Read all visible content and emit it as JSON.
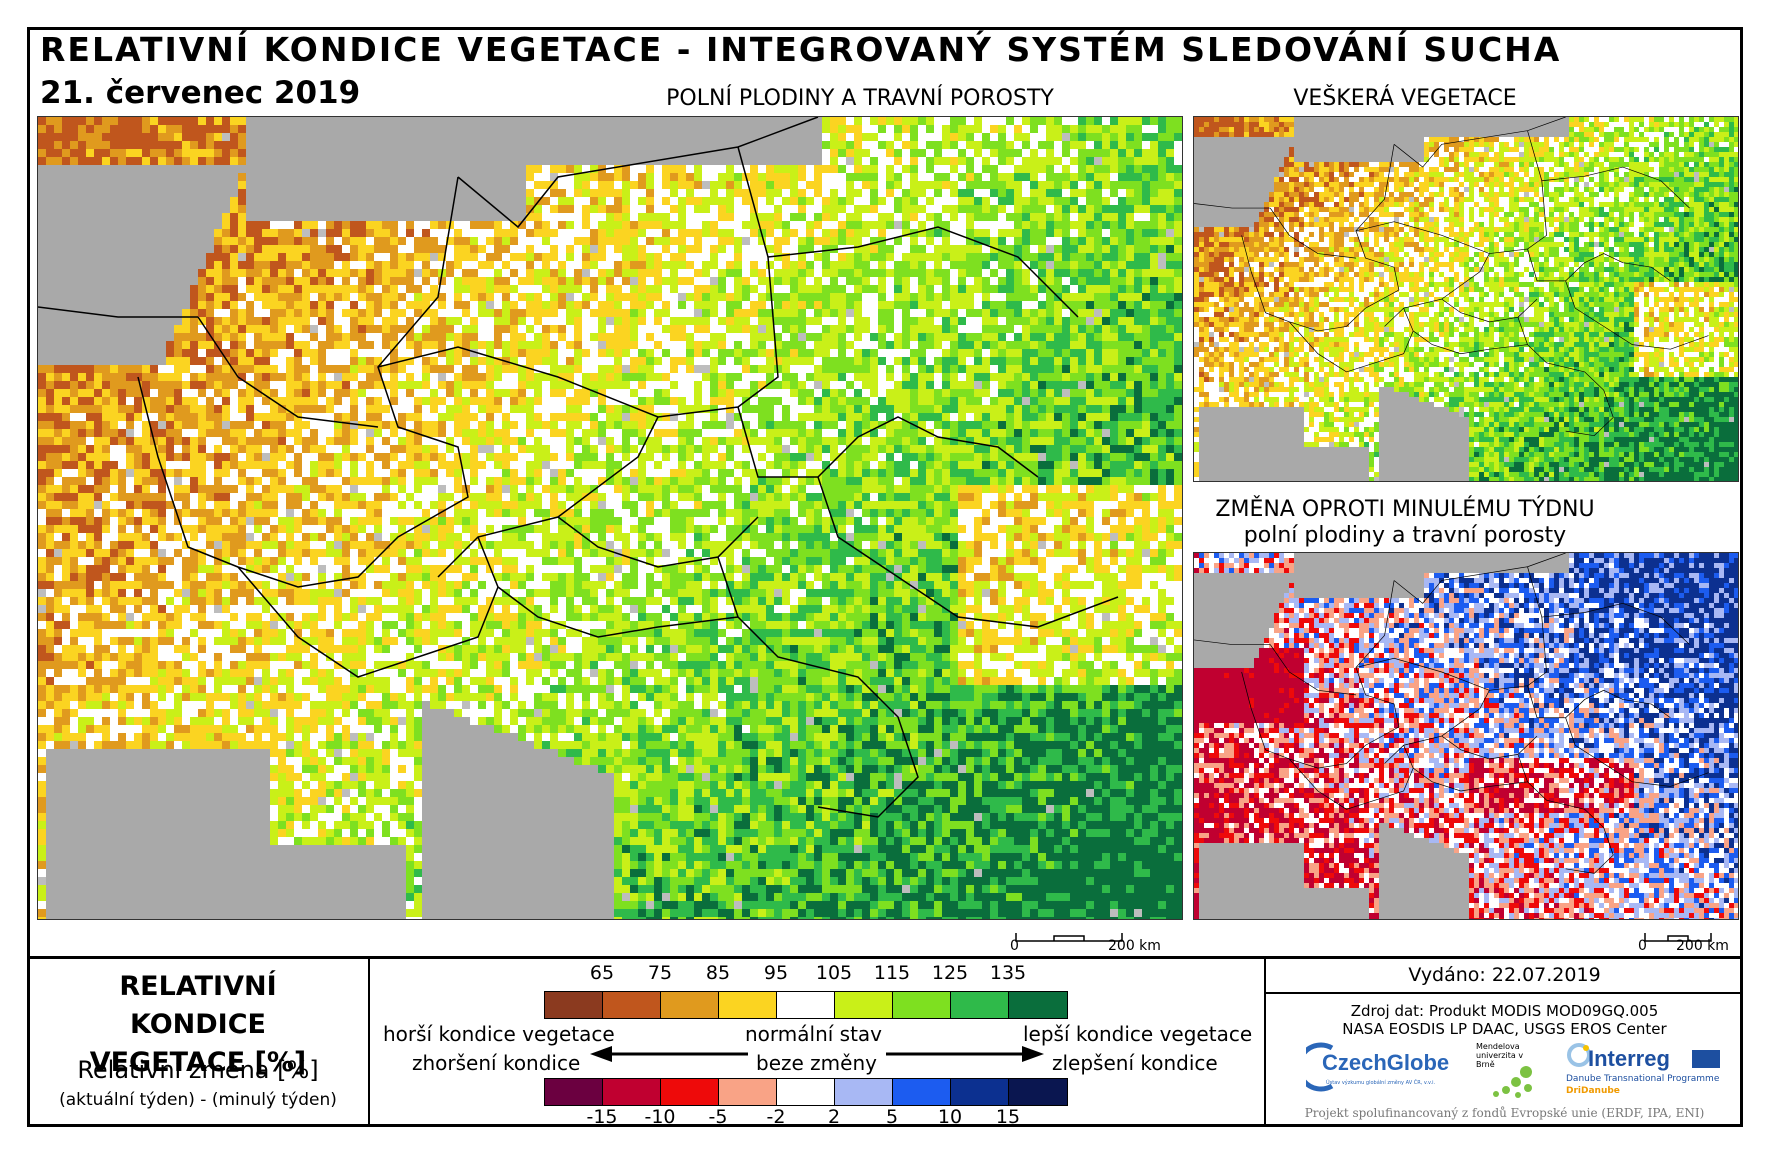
{
  "header": {
    "title": "RELATIVNÍ KONDICE VEGETACE - INTEGROVANÝ SYSTÉM SLEDOVÁNÍ SUCHA",
    "date": "21. červenec 2019"
  },
  "maps": {
    "main_title": "POLNÍ PLODINY A TRAVNÍ POROSTY",
    "top_right_title": "VEŠKERÁ VEGETACE",
    "bottom_right_title_1": "ZMĚNA OPROTI MINULÉMU TÝDNU",
    "bottom_right_title_2": "polní plodiny a travní porosty",
    "scale_zero": "0",
    "scale_km": "200 km"
  },
  "legend": {
    "title_line1": "RELATIVNÍ KONDICE",
    "title_line2": "VEGETACE [%]",
    "sub_title": "Relativní změna [%]",
    "sub_note": "(aktuální týden) - (minulý týden)",
    "condition_ticks": [
      "65",
      "75",
      "85",
      "95",
      "105",
      "115",
      "125",
      "135"
    ],
    "condition_colors": [
      "#8b3a1f",
      "#c0561d",
      "#e09a1e",
      "#fbd421",
      "#ffffff",
      "#c9f018",
      "#7ee020",
      "#2fba4a",
      "#0a6e3c"
    ],
    "change_ticks": [
      "-15",
      "-10",
      "-5",
      "-2",
      "2",
      "5",
      "10",
      "15"
    ],
    "change_colors": [
      "#6b0040",
      "#c00030",
      "#ee0a0a",
      "#f9a386",
      "#ffffff",
      "#a8b8f4",
      "#1c5cf0",
      "#0c3090",
      "#0a1650"
    ],
    "worse": "horší kondice vegetace",
    "normal": "normální stav",
    "better": "lepší kondice vegetace",
    "worsening": "zhoršení kondice",
    "no_change": "beze změny",
    "improving": "zlepšení kondice"
  },
  "info": {
    "issued": "Vydáno: 22.07.2019",
    "source_1": "Zdroj dat: Produkt MODIS MOD09GQ.005",
    "source_2": "NASA EOSDIS LP DAAC, USGS EROS Center",
    "logo_czechglobe": "CzechGlobe",
    "logo_czechglobe_sub": "Ústav výzkumu globální změny AV ČR, v.v.i.",
    "logo_mendel": "Mendelova univerzita v Brně",
    "logo_interreg": "Interreg",
    "logo_interreg_sub": "Danube Transnational Programme",
    "logo_dridanube": "DriDanube",
    "footer": "Projekt spolufinancovaný z fondů Evropské unie (ERDF, IPA, ENI)"
  }
}
